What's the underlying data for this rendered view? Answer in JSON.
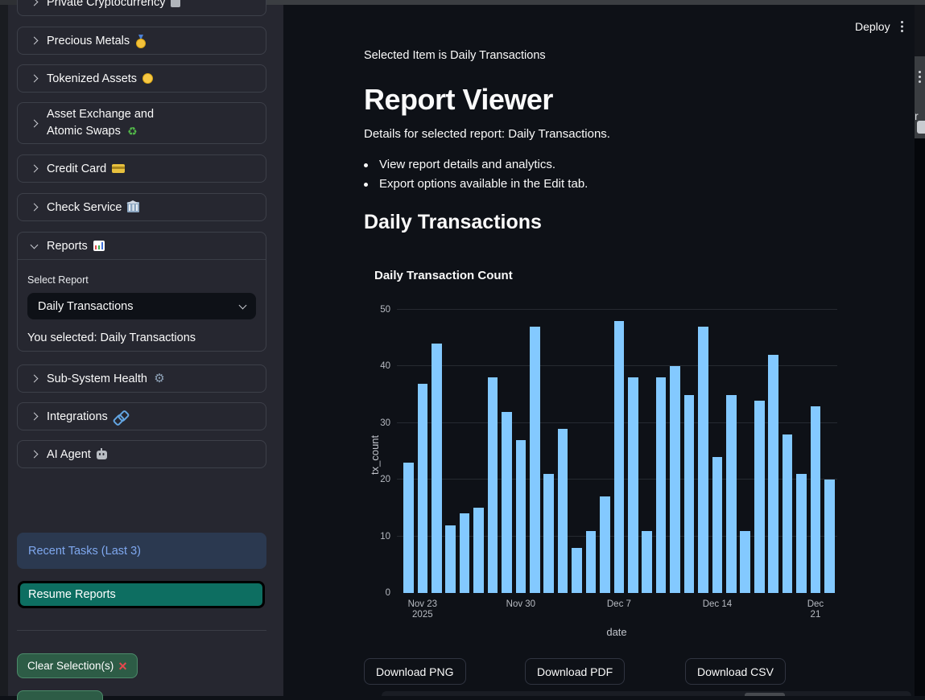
{
  "header": {
    "deploy_label": "Deploy"
  },
  "sidebar": {
    "expanders": [
      {
        "label": "Private Cryptocurrency",
        "icon": "crypto-icon",
        "state": "collapsed",
        "partial": true
      },
      {
        "label": "Precious Metals",
        "icon": "medal-icon",
        "state": "collapsed"
      },
      {
        "label": "Tokenized Assets",
        "icon": "coin-icon",
        "state": "collapsed"
      },
      {
        "label": "Asset Exchange and Atomic Swaps",
        "label_lines": [
          "Asset Exchange and",
          "Atomic Swaps"
        ],
        "icon": "recycle-icon",
        "state": "collapsed"
      },
      {
        "label": "Credit Card",
        "icon": "credit-card-icon",
        "state": "collapsed"
      },
      {
        "label": "Check Service",
        "icon": "bank-icon",
        "state": "collapsed"
      },
      {
        "label": "Reports",
        "icon": "bar-chart-icon",
        "state": "expanded"
      },
      {
        "label": "Sub-System Health",
        "icon": "gear-icon",
        "state": "collapsed"
      },
      {
        "label": "Integrations",
        "icon": "link-icon",
        "state": "collapsed"
      },
      {
        "label": "AI Agent",
        "icon": "robot-icon",
        "state": "collapsed"
      }
    ],
    "reports_panel": {
      "select_label": "Select Report",
      "select_value": "Daily Transactions",
      "selected_text": "You selected: Daily Transactions"
    },
    "recent_tasks_label": "Recent Tasks (Last 3)",
    "resume_button_label": "Resume Reports",
    "clear_button_label": "Clear Selection(s)",
    "clear_button_glyph": "×"
  },
  "main": {
    "selected_item_text": "Selected Item is Daily Transactions",
    "page_title": "Report Viewer",
    "details_text": "Details for selected report: Daily Transactions.",
    "bullets": [
      "View report details and analytics.",
      "Export options available in the Edit tab."
    ],
    "section_title": "Daily Transactions",
    "downloads": {
      "png": "Download PNG",
      "pdf": "Download PDF",
      "csv": "Download CSV"
    }
  },
  "chart_data": {
    "type": "bar",
    "title": "Daily Transaction Count",
    "xlabel": "date",
    "ylabel": "tx_count",
    "x": [
      "2025-11-22",
      "2025-11-23",
      "2025-11-24",
      "2025-11-25",
      "2025-11-26",
      "2025-11-27",
      "2025-11-28",
      "2025-11-29",
      "2025-11-30",
      "2025-12-01",
      "2025-12-02",
      "2025-12-03",
      "2025-12-04",
      "2025-12-05",
      "2025-12-06",
      "2025-12-07",
      "2025-12-08",
      "2025-12-09",
      "2025-12-10",
      "2025-12-11",
      "2025-12-12",
      "2025-12-13",
      "2025-12-14",
      "2025-12-15",
      "2025-12-16",
      "2025-12-17",
      "2025-12-18",
      "2025-12-19",
      "2025-12-20",
      "2025-12-21",
      "2025-12-22"
    ],
    "values": [
      23,
      37,
      44,
      12,
      14,
      15,
      38,
      32,
      27,
      47,
      21,
      29,
      8,
      11,
      17,
      48,
      38,
      11,
      38,
      40,
      35,
      47,
      24,
      35,
      11,
      34,
      42,
      28,
      21,
      33,
      20
    ],
    "ylim": [
      0,
      50
    ],
    "yticks": [
      0,
      10,
      20,
      30,
      40,
      50
    ],
    "xticks": [
      {
        "index": 1,
        "label": "Nov 23",
        "sub": "2025"
      },
      {
        "index": 8,
        "label": "Nov 30"
      },
      {
        "index": 15,
        "label": "Dec 7"
      },
      {
        "index": 22,
        "label": "Dec 14"
      },
      {
        "index": 29,
        "label": "Dec 21"
      }
    ],
    "grid": true,
    "legend": "none",
    "bar_color": "#83c9ff"
  },
  "colors": {
    "main_bg": "#0e1117",
    "sidebar_bg": "#262730",
    "bar": "#83c9ff",
    "resume_button": "#0d6e61",
    "clear_button": "#2d5c46",
    "info_bg": "#2b3950",
    "info_text": "#7fa8ef"
  }
}
